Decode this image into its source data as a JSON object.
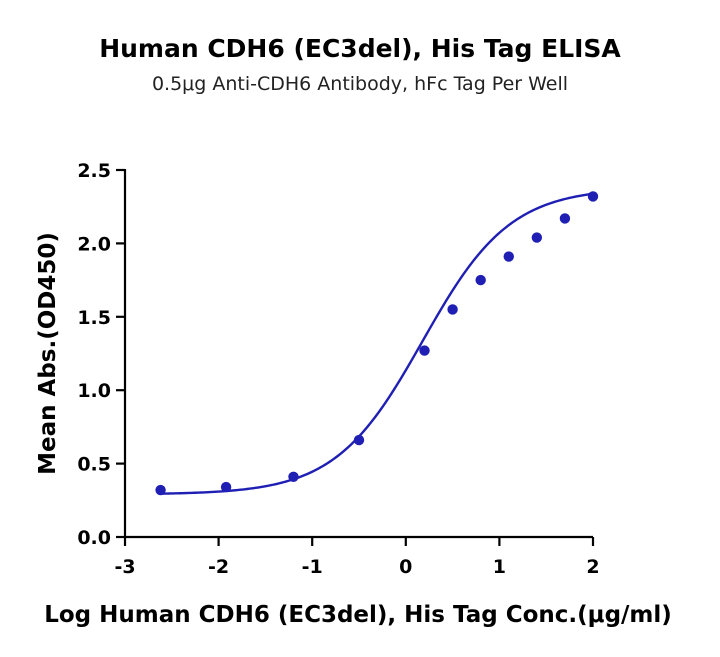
{
  "chart_data": {
    "type": "scatter",
    "title": "Human CDH6 (EC3del), His Tag ELISA",
    "subtitle": "0.5μg Anti-CDH6 Antibody, hFc Tag Per Well",
    "xlabel": "Log Human CDH6 (EC3del), His Tag Conc.(μg/ml)",
    "ylabel": "Mean Abs.(OD450)",
    "xlim": [
      -3,
      2
    ],
    "ylim": [
      0,
      2.5
    ],
    "x_ticks": [
      "-3",
      "-2",
      "-1",
      "0",
      "1",
      "2"
    ],
    "y_ticks": [
      "0.0",
      "0.5",
      "1.0",
      "1.5",
      "2.0",
      "2.5"
    ],
    "grid": false,
    "color": "#1f1fb4",
    "series": [
      {
        "x": [
          -2.62,
          -1.92,
          -1.2,
          -0.5,
          0.2,
          0.5,
          0.8,
          1.1,
          1.4,
          1.7,
          2.0
        ],
        "y": [
          0.32,
          0.34,
          0.41,
          0.66,
          1.27,
          1.55,
          1.75,
          1.91,
          2.04,
          2.17,
          2.32
        ]
      }
    ],
    "fit": {
      "type": "4PL",
      "bottom": 0.29,
      "top": 2.38,
      "logEC50": 0.18,
      "hill": 0.93
    }
  }
}
